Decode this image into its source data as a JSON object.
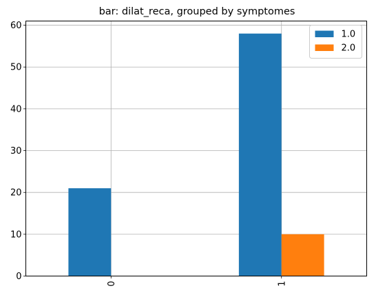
{
  "chart_data": {
    "type": "bar",
    "title": "bar: dilat_reca, grouped by symptomes",
    "xlabel": "",
    "ylabel": "",
    "categories": [
      "0",
      "1"
    ],
    "series": [
      {
        "name": "1.0",
        "values": [
          21,
          58
        ],
        "color": "#1f77b4"
      },
      {
        "name": "2.0",
        "values": [
          0,
          10
        ],
        "color": "#ff7f0e"
      }
    ],
    "ylim": [
      0,
      61
    ],
    "yticks": [
      0,
      10,
      20,
      30,
      40,
      50,
      60
    ],
    "grid": true,
    "legend_position": "top-right"
  }
}
